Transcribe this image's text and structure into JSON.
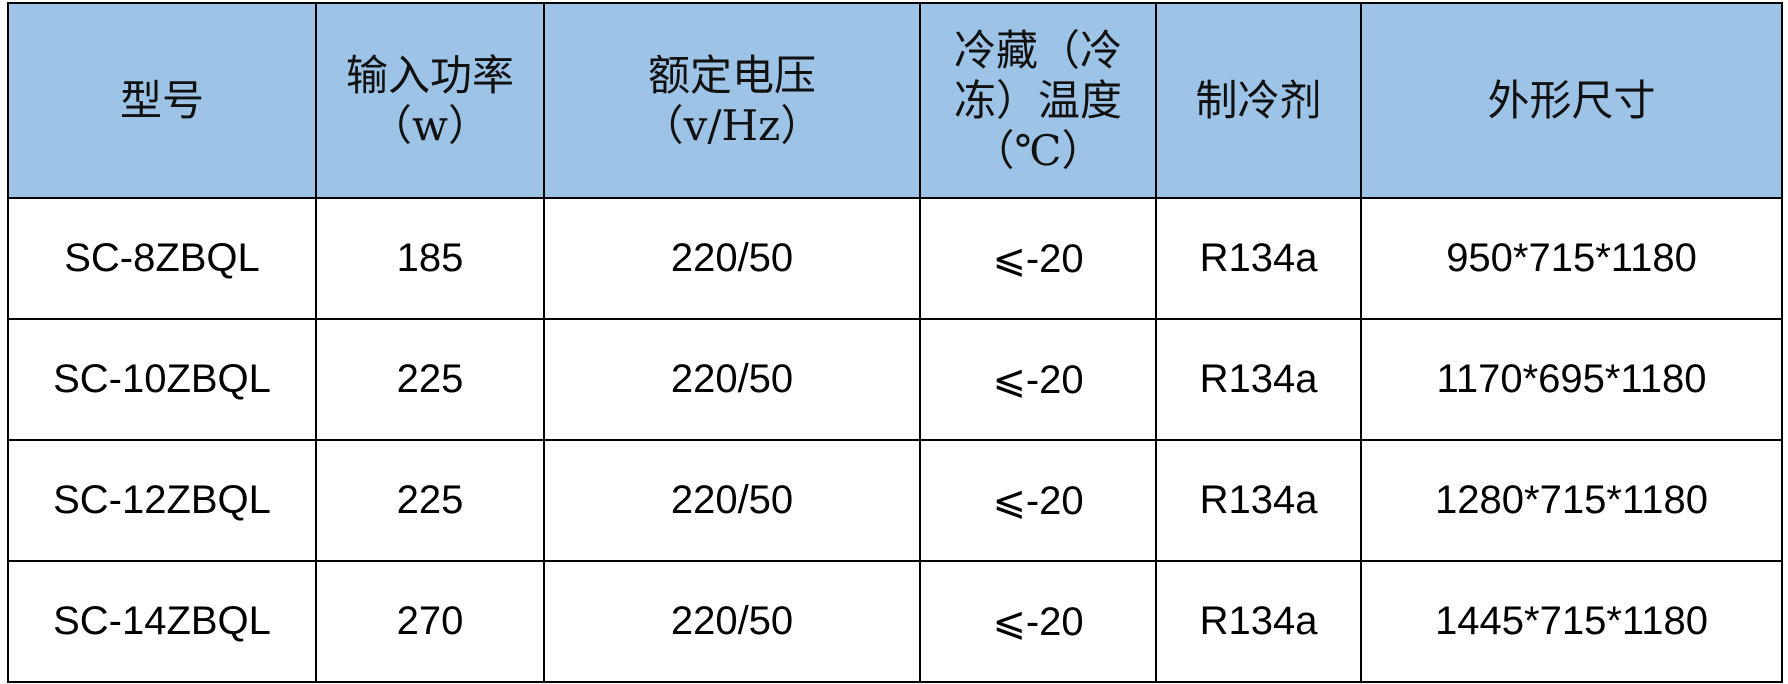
{
  "header_color": "#9dc3e6",
  "headers": [
    "型号",
    "输入功率（w）",
    "额定电压（v/Hz）",
    "冷藏（冷冻）温度（℃）",
    "制冷剂",
    "外形尺寸"
  ],
  "rows": [
    [
      "SC-8ZBQL",
      "185",
      "220/50",
      "⩽-20",
      "R134a",
      "950*715*1180"
    ],
    [
      "SC-10ZBQL",
      "225",
      "220/50",
      "⩽-20",
      "R134a",
      "1170*695*1180"
    ],
    [
      "SC-12ZBQL",
      "225",
      "220/50",
      "⩽-20",
      "R134a",
      "1280*715*1180"
    ],
    [
      "SC-14ZBQL",
      "270",
      "220/50",
      "⩽-20",
      "R134a",
      "1445*715*1180"
    ]
  ]
}
